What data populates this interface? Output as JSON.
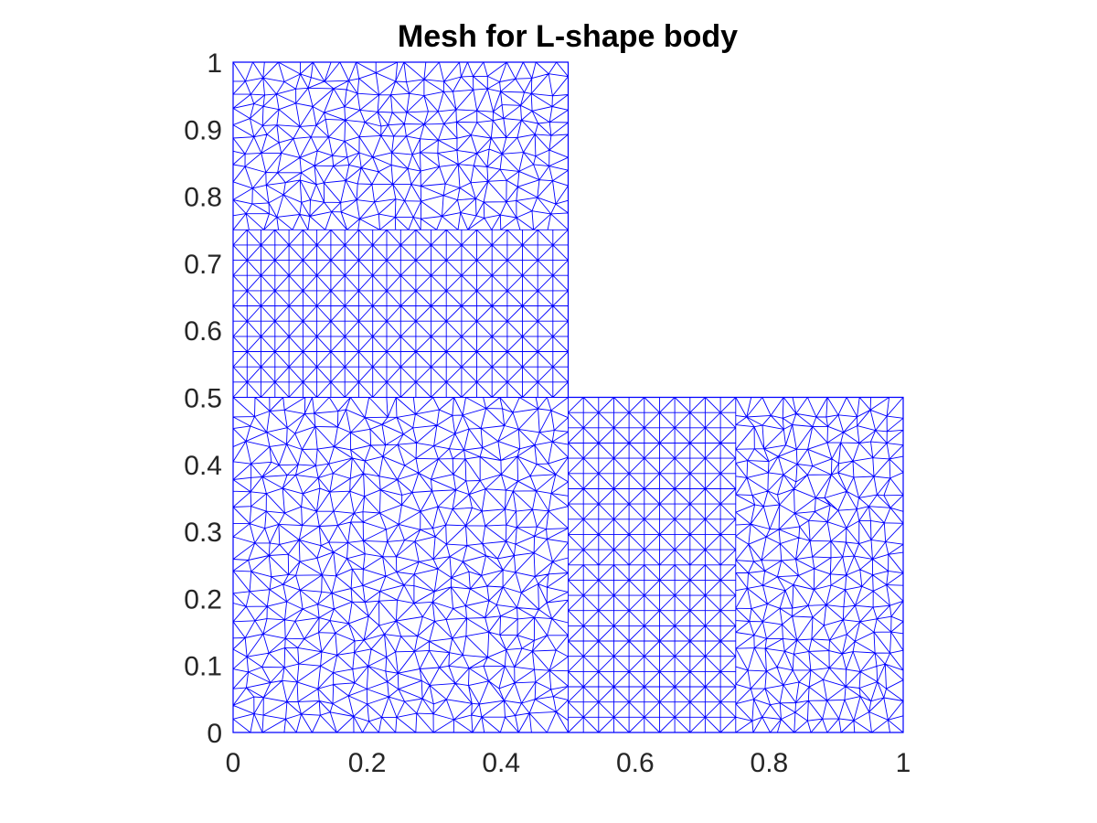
{
  "chart_data": {
    "type": "mesh",
    "title": "Mesh for L-shape body",
    "xlabel": "",
    "ylabel": "",
    "xlim": [
      0,
      1
    ],
    "ylim": [
      0,
      1
    ],
    "x_ticks": [
      {
        "value": 0,
        "label": "0"
      },
      {
        "value": 0.2,
        "label": "0.2"
      },
      {
        "value": 0.4,
        "label": "0.4"
      },
      {
        "value": 0.6,
        "label": "0.6"
      },
      {
        "value": 0.8,
        "label": "0.8"
      },
      {
        "value": 1,
        "label": "1"
      }
    ],
    "y_ticks": [
      {
        "value": 0,
        "label": "0"
      },
      {
        "value": 0.1,
        "label": "0.1"
      },
      {
        "value": 0.2,
        "label": "0.2"
      },
      {
        "value": 0.3,
        "label": "0.3"
      },
      {
        "value": 0.4,
        "label": "0.4"
      },
      {
        "value": 0.5,
        "label": "0.5"
      },
      {
        "value": 0.6,
        "label": "0.6"
      },
      {
        "value": 0.7,
        "label": "0.7"
      },
      {
        "value": 0.8,
        "label": "0.8"
      },
      {
        "value": 0.9,
        "label": "0.9"
      },
      {
        "value": 1,
        "label": "1"
      }
    ],
    "grid": false,
    "mesh_color": "#0000ff",
    "boundary": [
      [
        0,
        0
      ],
      [
        1,
        0
      ],
      [
        1,
        0.5
      ],
      [
        0.5,
        0.5
      ],
      [
        0.5,
        1
      ],
      [
        0,
        1
      ]
    ],
    "regions": [
      {
        "kind": "unstructured",
        "x": [
          0,
          0.5
        ],
        "y": [
          0.75,
          1
        ],
        "nx": 21,
        "ny": 11
      },
      {
        "kind": "structured",
        "x": [
          0,
          0.25
        ],
        "y": [
          0.5,
          0.75
        ],
        "nx": 12,
        "ny": 11
      },
      {
        "kind": "structured",
        "x": [
          0.25,
          0.5
        ],
        "y": [
          0.5,
          0.75
        ],
        "nx": 11,
        "ny": 11
      },
      {
        "kind": "unstructured",
        "x": [
          0,
          0.5
        ],
        "y": [
          0,
          0.5
        ],
        "nx": 20,
        "ny": 21
      },
      {
        "kind": "structured",
        "x": [
          0.5,
          0.75
        ],
        "y": [
          0.25,
          0.5
        ],
        "nx": 11,
        "ny": 11
      },
      {
        "kind": "structured",
        "x": [
          0.5,
          0.75
        ],
        "y": [
          0,
          0.25
        ],
        "nx": 11,
        "ny": 11
      },
      {
        "kind": "unstructured",
        "x": [
          0.75,
          1
        ],
        "y": [
          0,
          0.5
        ],
        "nx": 11,
        "ny": 21
      }
    ]
  }
}
